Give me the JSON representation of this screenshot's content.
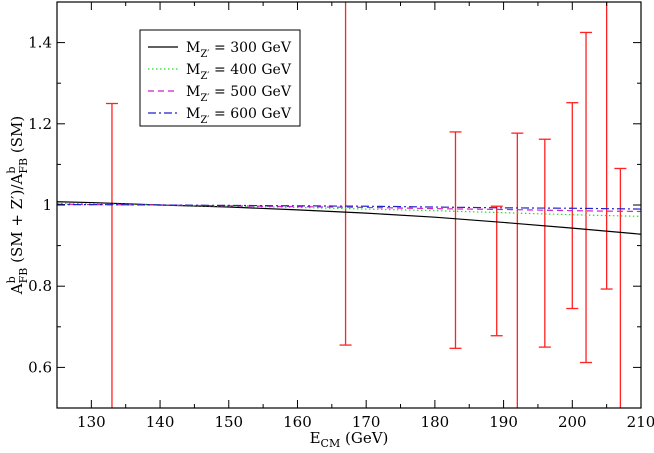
{
  "chart_data": {
    "type": "line",
    "title": "",
    "xlabel": {
      "main": "E",
      "sub": "CM",
      "rest": " (GeV)"
    },
    "ylabel": {
      "p1": "A",
      "p1sup": "b",
      "p1sub": "FB",
      "mid": " (SM + Z",
      "prime": "′",
      "mid2": ")/A",
      "p2sup": "b",
      "p2sub": "FB",
      "end": " (SM)"
    },
    "xlim": [
      125,
      210
    ],
    "ylim": [
      0.5,
      1.5
    ],
    "x_ticks": [
      130,
      140,
      150,
      160,
      170,
      180,
      190,
      200,
      210
    ],
    "y_ticks": [
      0.6,
      0.8,
      1.0,
      1.2,
      1.4
    ],
    "y_tick_labels": [
      "0.6",
      "0.8",
      "1",
      "1.2",
      "1.4"
    ],
    "series": [
      {
        "name": "M",
        "sub": "Z′",
        "value": " = 300 GeV",
        "color": "#000000",
        "dash": "solid",
        "x": [
          125,
          130,
          140,
          150,
          160,
          170,
          180,
          190,
          200,
          210
        ],
        "y": [
          1.008,
          1.006,
          1.0,
          0.995,
          0.988,
          0.98,
          0.97,
          0.957,
          0.943,
          0.928
        ]
      },
      {
        "name": "M",
        "sub": "Z′",
        "value": " = 400 GeV",
        "color": "#22dd22",
        "dash": "dotted",
        "x": [
          125,
          130,
          140,
          150,
          160,
          170,
          180,
          190,
          200,
          210
        ],
        "y": [
          1.004,
          1.003,
          1.0,
          0.997,
          0.994,
          0.99,
          0.986,
          0.981,
          0.976,
          0.972
        ]
      },
      {
        "name": "M",
        "sub": "Z′",
        "value": " = 500 GeV",
        "color": "#cc22cc",
        "dash": "dashed",
        "x": [
          125,
          130,
          140,
          150,
          160,
          170,
          180,
          190,
          200,
          210
        ],
        "y": [
          1.002,
          1.001,
          1.0,
          0.998,
          0.996,
          0.994,
          0.991,
          0.989,
          0.986,
          0.984
        ]
      },
      {
        "name": "M",
        "sub": "Z′",
        "value": " = 600 GeV",
        "color": "#2222cc",
        "dash": "dashdot",
        "x": [
          125,
          130,
          140,
          150,
          160,
          170,
          180,
          190,
          200,
          210
        ],
        "y": [
          1.001,
          1.001,
          1.0,
          0.999,
          0.998,
          0.997,
          0.995,
          0.993,
          0.992,
          0.99
        ]
      }
    ],
    "error_bars": {
      "color": "#ff2222",
      "points": [
        {
          "x": 133,
          "low": 0.4,
          "high": 1.25
        },
        {
          "x": 167,
          "low": 0.655,
          "high": 1.55
        },
        {
          "x": 183,
          "low": 0.647,
          "high": 1.18
        },
        {
          "x": 189,
          "low": 0.678,
          "high": 0.997
        },
        {
          "x": 192,
          "low": 0.4,
          "high": 1.177
        },
        {
          "x": 196,
          "low": 0.65,
          "high": 1.162
        },
        {
          "x": 200,
          "low": 0.745,
          "high": 1.252
        },
        {
          "x": 202,
          "low": 0.612,
          "high": 1.425
        },
        {
          "x": 205,
          "low": 0.793,
          "high": 1.55
        },
        {
          "x": 207,
          "low": 0.4,
          "high": 1.09
        }
      ]
    },
    "legend_position": "top-left",
    "grid": false
  }
}
